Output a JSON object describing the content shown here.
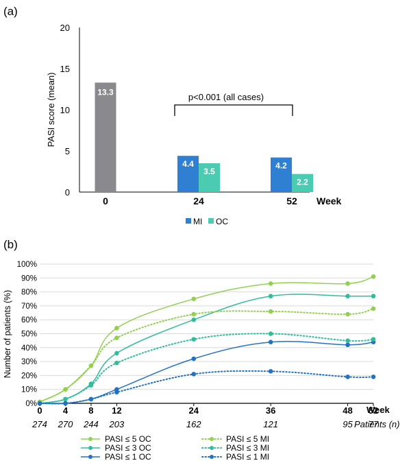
{
  "panel_a_label": "(a)",
  "panel_b_label": "(b)",
  "colors": {
    "baseline_bar": "#8a8a8e",
    "mi": "#2f7fd2",
    "oc": "#4ccbb3",
    "pasi5": "#92d050",
    "pasi3": "#2fbd9c",
    "pasi1": "#2272c3",
    "grid": "#d9d9d9"
  },
  "chart_data": [
    {
      "type": "bar",
      "panel": "(a)",
      "ylabel": "PASI score (mean)",
      "xlabel": "Week",
      "ylim": [
        0,
        20
      ],
      "yticks": [
        "0",
        "5",
        "10",
        "15",
        "20"
      ],
      "categories": [
        "0",
        "24",
        "52"
      ],
      "baseline": {
        "category": "0",
        "value": 13.3,
        "label": "13.3"
      },
      "series": [
        {
          "name": "MI",
          "values": [
            null,
            4.4,
            4.2
          ],
          "labels": [
            "",
            "4.4",
            "4.2"
          ]
        },
        {
          "name": "OC",
          "values": [
            null,
            3.5,
            2.2
          ],
          "labels": [
            "",
            "3.5",
            "2.2"
          ]
        }
      ],
      "annotation": "p<0.001 (all cases)",
      "legend_position": "bottom"
    },
    {
      "type": "line",
      "panel": "(b)",
      "ylabel": "Number of patients (%)",
      "xlabel": "Week",
      "ylim": [
        0,
        100
      ],
      "yticks": [
        "0%",
        "10%",
        "20%",
        "30%",
        "40%",
        "50%",
        "60%",
        "70%",
        "80%",
        "90%",
        "100%"
      ],
      "x": [
        0,
        4,
        8,
        12,
        24,
        36,
        48,
        52
      ],
      "xticks": [
        "0",
        "4",
        "8",
        "12",
        "24",
        "36",
        "48",
        "52"
      ],
      "patients_label": "Patients (n)",
      "patients": [
        "274",
        "270",
        "244",
        "203",
        "162",
        "121",
        "95",
        "77"
      ],
      "series": [
        {
          "name": "PASI ≤ 5 OC",
          "style": "solid",
          "values": [
            1,
            10,
            27,
            54,
            75,
            86,
            86,
            91
          ]
        },
        {
          "name": "PASI ≤ 3 OC",
          "style": "solid",
          "values": [
            0,
            3,
            14,
            36,
            60,
            77,
            77,
            77
          ]
        },
        {
          "name": "PASI ≤ 1 OC",
          "style": "solid",
          "values": [
            0,
            0,
            3,
            10,
            32,
            44,
            42,
            44
          ]
        },
        {
          "name": "PASI ≤ 5 MI",
          "style": "dotted",
          "values": [
            1,
            10,
            27,
            47,
            64,
            66,
            64,
            68
          ]
        },
        {
          "name": "PASI ≤ 3 MI",
          "style": "dotted",
          "values": [
            0,
            3,
            13,
            29,
            46,
            50,
            45,
            46
          ]
        },
        {
          "name": "PASI ≤ 1 MI",
          "style": "dotted",
          "values": [
            0,
            0,
            3,
            8,
            21,
            23,
            19,
            19
          ]
        }
      ],
      "legend_position": "bottom"
    }
  ]
}
